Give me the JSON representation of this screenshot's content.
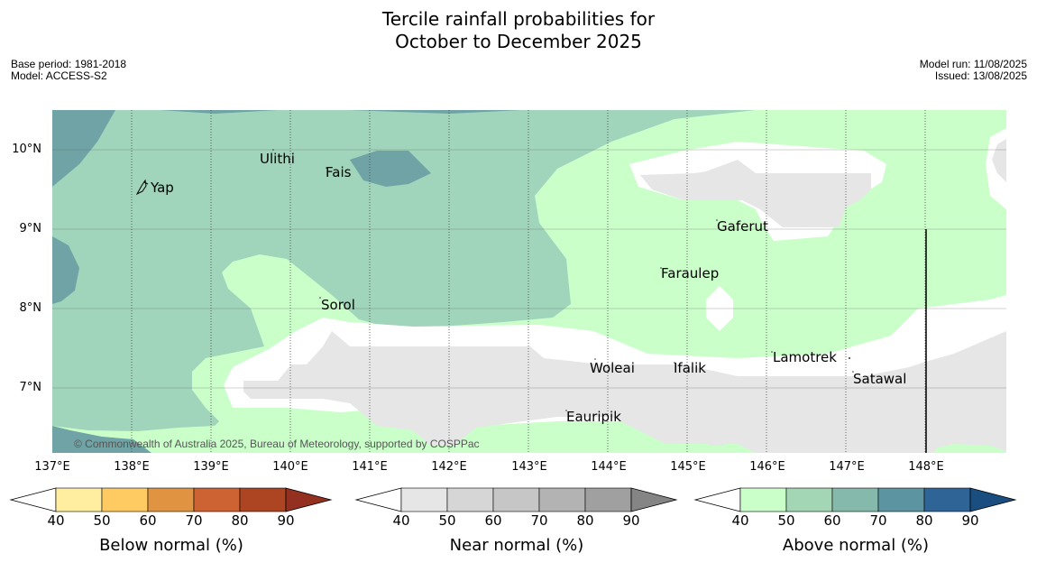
{
  "title": {
    "line1": "Tercile rainfall probabilities for",
    "line2": "October to December 2025"
  },
  "meta_left": {
    "base_period": "Base period: 1981-2018",
    "model": "Model: ACCESS-S2"
  },
  "meta_right": {
    "model_run": "Model run: 11/08/2025",
    "issued": "Issued: 13/08/2025"
  },
  "map": {
    "lat_labels": [
      "10°N",
      "9°N",
      "8°N",
      "7°N"
    ],
    "lon_labels": [
      "137°E",
      "138°E",
      "139°E",
      "140°E",
      "141°E",
      "142°E",
      "143°E",
      "144°E",
      "145°E",
      "146°E",
      "147°E",
      "148°E"
    ],
    "places": {
      "ulithi": "Ulithi",
      "fais": "Fais",
      "yap": "Yap",
      "gaferut": "Gaferut",
      "faraulep": "Faraulep",
      "sorol": "Sorol",
      "lamotrek": "Lamotrek",
      "woleai": "Woleai",
      "ifalik": "Ifalik",
      "satawal": "Satawal",
      "eauripik": "Eauripik"
    },
    "copyright": "© Commonwealth of Australia 2025, Bureau of Meteorology, supported by COSPPac"
  },
  "colorbars": {
    "ticks": [
      "40",
      "50",
      "60",
      "70",
      "80",
      "90"
    ],
    "below": {
      "label": "Below normal (%)",
      "colors": [
        "#ffeea0",
        "#fecb62",
        "#e09441",
        "#cd6232",
        "#ad4523",
        "#93301f"
      ]
    },
    "near": {
      "label": "Near normal (%)",
      "colors": [
        "#e6e6e6",
        "#d6d6d6",
        "#c6c6c6",
        "#b3b3b3",
        "#a0a0a0",
        "#858585"
      ]
    },
    "above": {
      "label": "Above normal (%)",
      "colors": [
        "#caffca",
        "#a3d6b4",
        "#85b9ac",
        "#5c94a1",
        "#2f6496",
        "#1a4d80"
      ]
    }
  }
}
